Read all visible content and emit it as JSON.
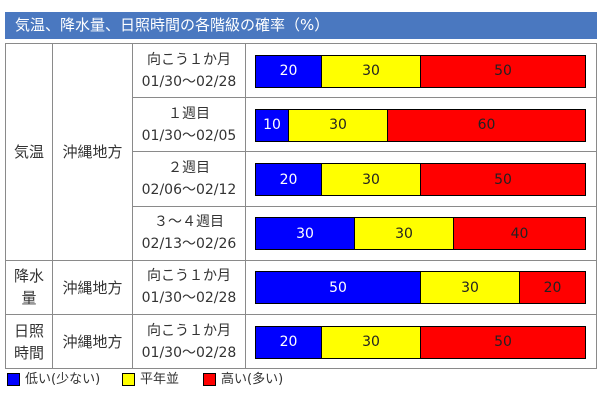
{
  "header": {
    "title": "気温、降水量、日照時間の各階級の確率（%）"
  },
  "legend": [
    {
      "label": "低い(少ない)",
      "color": "#0000ff"
    },
    {
      "label": "平年並",
      "color": "#ffff00"
    },
    {
      "label": "高い(多い)",
      "color": "#ff0000"
    }
  ],
  "table": {
    "groups": [
      {
        "element": "気温",
        "region": "沖縄地方",
        "rows": [
          {
            "period": "向こう１か月",
            "dates": "01/30～02/28",
            "values": [
              20,
              30,
              50
            ]
          },
          {
            "period": "１週目",
            "dates": "01/30～02/05",
            "values": [
              10,
              30,
              60
            ]
          },
          {
            "period": "２週目",
            "dates": "02/06～02/12",
            "values": [
              20,
              30,
              50
            ]
          },
          {
            "period": "３～４週目",
            "dates": "02/13～02/26",
            "values": [
              30,
              30,
              40
            ]
          }
        ]
      },
      {
        "element": "降水量",
        "region": "沖縄地方",
        "rows": [
          {
            "period": "向こう１か月",
            "dates": "01/30～02/28",
            "values": [
              50,
              30,
              20
            ]
          }
        ]
      },
      {
        "element": "日照時間",
        "region": "沖縄地方",
        "rows": [
          {
            "period": "向こう１か月",
            "dates": "01/30～02/28",
            "values": [
              20,
              30,
              50
            ]
          }
        ]
      }
    ]
  }
}
